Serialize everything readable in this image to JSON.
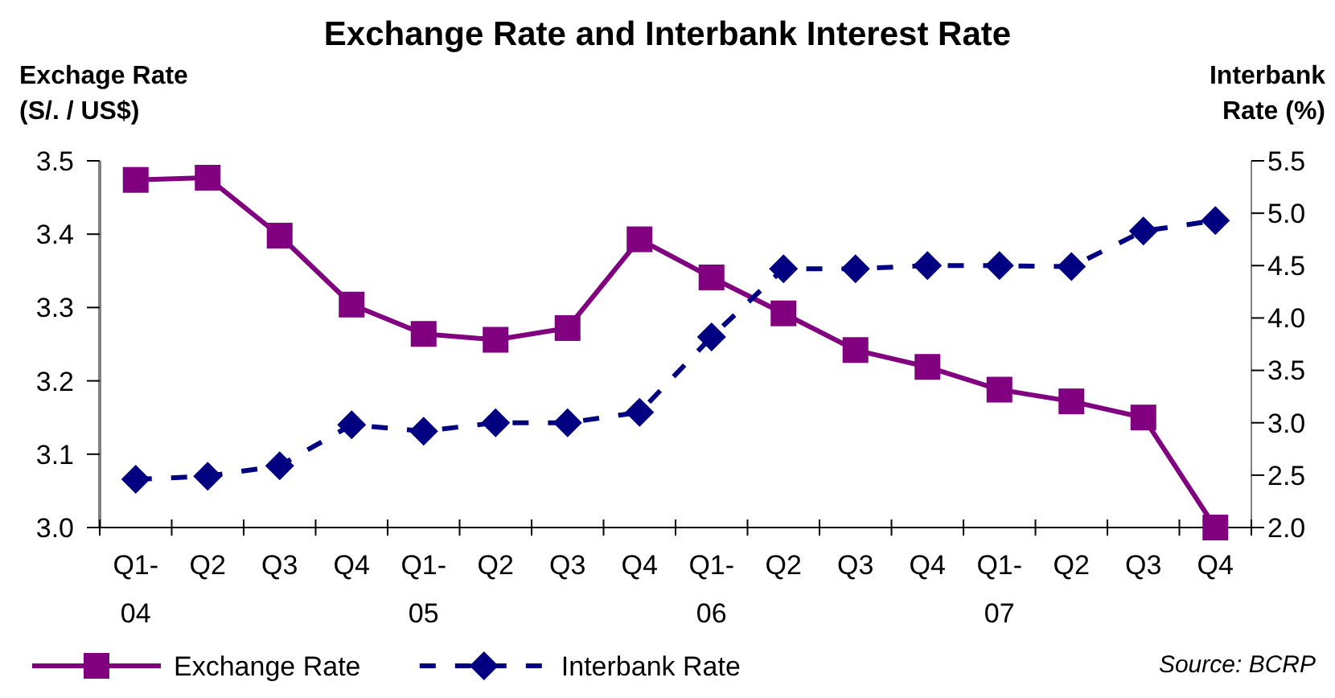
{
  "chart_data": {
    "type": "line",
    "title": "Exchange Rate and Interbank Interest Rate",
    "ylabel": "Exchage Rate\n(S/. / US$)",
    "y2label": "Interbank\nRate (%)",
    "categories": [
      "Q1-04",
      "Q2",
      "Q3",
      "Q4",
      "Q1-05",
      "Q2",
      "Q3",
      "Q4",
      "Q1-06",
      "Q2",
      "Q3",
      "Q4",
      "Q1-07",
      "Q2",
      "Q3",
      "Q4"
    ],
    "series": [
      {
        "name": "Exchange Rate",
        "color": "#800080",
        "marker": "square",
        "line_style": "solid",
        "values": [
          3.474,
          3.477,
          3.398,
          3.304,
          3.264,
          3.256,
          3.272,
          3.393,
          3.341,
          3.292,
          3.242,
          3.219,
          3.188,
          3.172,
          3.15,
          3.0
        ]
      },
      {
        "name": "Interbank Rate",
        "color": "#000080",
        "marker": "diamond",
        "line_style": "dashed",
        "axis": "y2",
        "values": [
          2.46,
          2.49,
          2.59,
          2.98,
          2.92,
          3.0,
          3.0,
          3.1,
          3.82,
          4.47,
          4.47,
          4.5,
          4.5,
          4.49,
          4.83,
          4.93
        ]
      }
    ],
    "ylim": [
      3.0,
      3.5
    ],
    "yticks": [
      {
        "value": 3.0,
        "label": "3.0"
      },
      {
        "value": 3.1,
        "label": "3.1"
      },
      {
        "value": 3.2,
        "label": "3.2"
      },
      {
        "value": 3.3,
        "label": "3.3"
      },
      {
        "value": 3.4,
        "label": "3.4"
      },
      {
        "value": 3.5,
        "label": "3.5"
      }
    ],
    "y2lim": [
      2.0,
      5.5
    ],
    "y2ticks": [
      {
        "value": 2.0,
        "label": "2.0"
      },
      {
        "value": 2.5,
        "label": "2.5"
      },
      {
        "value": 3.0,
        "label": "3.0"
      },
      {
        "value": 3.5,
        "label": "3.5"
      },
      {
        "value": 4.0,
        "label": "4.0"
      },
      {
        "value": 4.5,
        "label": "4.5"
      },
      {
        "value": 5.0,
        "label": "5.0"
      },
      {
        "value": 5.5,
        "label": "5.5"
      }
    ],
    "grid": false,
    "legend": "bottom left",
    "annotations": [
      "Source: BCRP"
    ]
  }
}
